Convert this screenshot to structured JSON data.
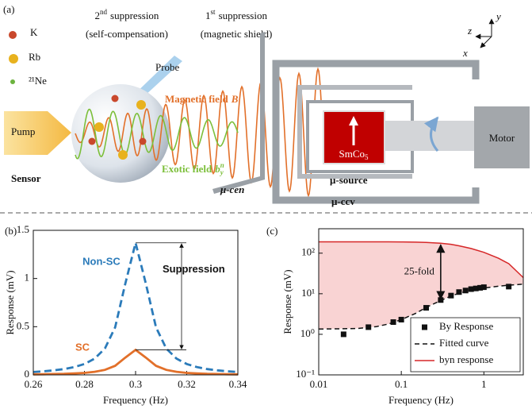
{
  "diagram": {
    "label": "(a)",
    "species": [
      "K",
      "Rb",
      "²¹Ne"
    ],
    "second_suppression": {
      "number": "2",
      "ordinal": "nd",
      "text": "suppression",
      "note": "(self-compensation)"
    },
    "first_suppression": {
      "number": "1",
      "ordinal": "st",
      "text": "suppression",
      "note": "(magnetic shield)"
    },
    "probe": "Probe",
    "pump": "Pump",
    "magnetic_field": {
      "text": "Magnetic field",
      "symbol": "B"
    },
    "exotic_field": {
      "text": "Exotic field",
      "symbol": "b",
      "sup": "n",
      "sub": "y"
    },
    "sensor": "Sensor",
    "shield": "μ-cen",
    "source_material": {
      "text": "SmCo",
      "sub": "5"
    },
    "source": "μ-source",
    "cover": "μ-ccv",
    "motor": "Motor",
    "axes": [
      "z",
      "y",
      "x"
    ]
  },
  "chart_data": [
    {
      "type": "line",
      "label": "(b)",
      "xlabel": "Frequency (Hz)",
      "ylabel": "Response (mV)",
      "xlim": [
        0.26,
        0.34
      ],
      "ylim": [
        0,
        1.5
      ],
      "xticks": [
        0.26,
        0.28,
        0.3,
        0.32,
        0.34
      ],
      "yticks": [
        0,
        0.5,
        1,
        1.5
      ],
      "x": [
        0.26,
        0.264,
        0.268,
        0.272,
        0.276,
        0.28,
        0.284,
        0.288,
        0.292,
        0.296,
        0.3,
        0.304,
        0.308,
        0.312,
        0.316,
        0.32,
        0.324,
        0.328,
        0.332,
        0.336,
        0.34
      ],
      "series": [
        {
          "name": "Non-SC",
          "color": "#2b7bba",
          "dash": true,
          "values": [
            0.03,
            0.037,
            0.047,
            0.06,
            0.081,
            0.113,
            0.169,
            0.274,
            0.493,
            0.949,
            1.37,
            0.949,
            0.493,
            0.274,
            0.169,
            0.113,
            0.081,
            0.06,
            0.047,
            0.037,
            0.03
          ]
        },
        {
          "name": "SC",
          "color": "#e2702a",
          "dash": false,
          "values": [
            0.006,
            0.007,
            0.009,
            0.011,
            0.015,
            0.021,
            0.032,
            0.052,
            0.094,
            0.18,
            0.26,
            0.18,
            0.094,
            0.052,
            0.032,
            0.021,
            0.015,
            0.011,
            0.009,
            0.007,
            0.006
          ]
        }
      ],
      "annotations": [
        "Suppression"
      ]
    },
    {
      "type": "line",
      "label": "(c)",
      "xlabel": "Frequency (Hz)",
      "ylabel": "Response (mV)",
      "xscale": "log",
      "yscale": "log",
      "xlim": [
        0.01,
        3
      ],
      "ylim": [
        0.1,
        400
      ],
      "xticks": [
        0.01,
        0.1,
        1
      ],
      "yticks": [
        {
          "value": 0.1,
          "label": "10⁻¹"
        },
        {
          "value": 1,
          "label": "10⁰"
        },
        {
          "value": 10,
          "label": "10¹"
        },
        {
          "value": 100,
          "label": "10²"
        }
      ],
      "legend": "lower right",
      "series": [
        {
          "name": "By Response",
          "type": "scatter",
          "marker": "square",
          "color": "#111111",
          "x": [
            0.02,
            0.04,
            0.08,
            0.1,
            0.2,
            0.3,
            0.4,
            0.5,
            0.6,
            0.7,
            0.8,
            0.9,
            1,
            2
          ],
          "values": [
            1.0,
            1.5,
            2.0,
            2.3,
            4.5,
            7,
            9,
            11,
            12,
            13,
            13.5,
            14,
            14.5,
            15
          ]
        },
        {
          "name": "Fitted curve",
          "type": "line",
          "dash": true,
          "color": "#111111",
          "x": [
            0.01,
            0.02,
            0.03,
            0.05,
            0.07,
            0.1,
            0.15,
            0.2,
            0.3,
            0.4,
            0.5,
            0.7,
            1,
            1.5,
            2,
            3
          ],
          "values": [
            1.35,
            1.37,
            1.4,
            1.55,
            1.8,
            2.3,
            3.3,
            4.6,
            6.8,
            8.8,
            10.3,
            12.2,
            13.8,
            15.3,
            16.2,
            17.2
          ]
        },
        {
          "name": "byn response",
          "type": "line",
          "dash": false,
          "color": "#d62728",
          "fill": "#f9d3d3",
          "x": [
            0.01,
            0.02,
            0.03,
            0.05,
            0.07,
            0.1,
            0.15,
            0.2,
            0.3,
            0.4,
            0.5,
            0.7,
            1,
            1.5,
            2,
            3
          ],
          "values": [
            190,
            190,
            190,
            190,
            190,
            189,
            187,
            184,
            176,
            165,
            152,
            130,
            105,
            75,
            55,
            25
          ]
        }
      ],
      "annotations": [
        "25-fold"
      ]
    }
  ]
}
